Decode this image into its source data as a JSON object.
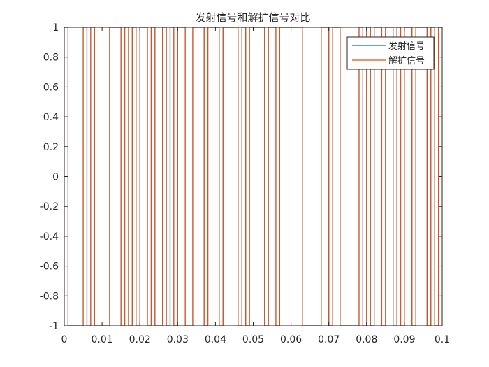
{
  "chart_data": {
    "type": "line",
    "title": "发射信号和解扩信号对比",
    "xlabel": "",
    "ylabel": "",
    "xlim": [
      0,
      0.1
    ],
    "ylim": [
      -1,
      1
    ],
    "x_ticks": [
      0,
      0.01,
      0.02,
      0.03,
      0.04,
      0.05,
      0.06,
      0.07,
      0.08,
      0.09,
      0.1
    ],
    "x_tick_labels": [
      "0",
      "0.01",
      "0.02",
      "0.03",
      "0.04",
      "0.05",
      "0.06",
      "0.07",
      "0.08",
      "0.09",
      "0.1"
    ],
    "y_ticks": [
      1,
      0.8,
      0.6,
      0.4,
      0.2,
      0,
      -0.2,
      -0.4,
      -0.6,
      -0.8,
      -1
    ],
    "y_tick_labels": [
      "1",
      "0.8",
      "0.6",
      "0.4",
      "0.2",
      "0",
      "-0.2",
      "-0.4",
      "-0.6",
      "-0.8",
      "-1"
    ],
    "grid": false,
    "legend_position": "top-right",
    "x": [
      0,
      0.001,
      0.002,
      0.003,
      0.004,
      0.005,
      0.006,
      0.007,
      0.008,
      0.009,
      0.01,
      0.011,
      0.012,
      0.013,
      0.014,
      0.015,
      0.016,
      0.017,
      0.018,
      0.019,
      0.02,
      0.021,
      0.022,
      0.023,
      0.024,
      0.025,
      0.026,
      0.027,
      0.028,
      0.029,
      0.03,
      0.031,
      0.032,
      0.033,
      0.034,
      0.035,
      0.036,
      0.037,
      0.038,
      0.039,
      0.04,
      0.041,
      0.042,
      0.043,
      0.044,
      0.045,
      0.046,
      0.047,
      0.048,
      0.049,
      0.05,
      0.051,
      0.052,
      0.053,
      0.054,
      0.055,
      0.056,
      0.057,
      0.058,
      0.059,
      0.06,
      0.061,
      0.062,
      0.063,
      0.064,
      0.065,
      0.066,
      0.067,
      0.068,
      0.069,
      0.07,
      0.071,
      0.072,
      0.073,
      0.074,
      0.075,
      0.076,
      0.077,
      0.078,
      0.079,
      0.08,
      0.081,
      0.082,
      0.083,
      0.084,
      0.085,
      0.086,
      0.087,
      0.088,
      0.089,
      0.09,
      0.091,
      0.092,
      0.093,
      0.094,
      0.095,
      0.096,
      0.097,
      0.098,
      0.099
    ],
    "series": [
      {
        "name": "发射信号",
        "color": "#0072BD",
        "values": [
          1,
          -1,
          -1,
          -1,
          -1,
          1,
          -1,
          1,
          -1,
          -1,
          -1,
          -1,
          1,
          1,
          1,
          -1,
          1,
          -1,
          1,
          -1,
          1,
          1,
          -1,
          1,
          -1,
          -1,
          1,
          -1,
          1,
          -1,
          1,
          1,
          -1,
          -1,
          1,
          1,
          1,
          -1,
          1,
          1,
          1,
          -1,
          1,
          1,
          1,
          1,
          -1,
          1,
          -1,
          1,
          1,
          1,
          1,
          -1,
          1,
          1,
          -1,
          1,
          1,
          1,
          1,
          1,
          1,
          -1,
          -1,
          -1,
          -1,
          -1,
          1,
          1,
          -1,
          1,
          1,
          -1,
          -1,
          -1,
          -1,
          -1,
          1,
          -1,
          1,
          -1,
          1,
          1,
          -1,
          1,
          1,
          -1,
          1,
          -1,
          1,
          1,
          -1,
          1,
          1,
          1,
          -1,
          1,
          -1,
          1
        ]
      },
      {
        "name": "解扩信号",
        "color": "#D95319",
        "values": [
          1,
          -1,
          -1,
          -1,
          -1,
          1,
          -1,
          1,
          -1,
          -1,
          -1,
          -1,
          1,
          1,
          1,
          -1,
          1,
          -1,
          1,
          -1,
          1,
          1,
          -1,
          1,
          -1,
          -1,
          1,
          -1,
          1,
          -1,
          1,
          1,
          -1,
          -1,
          1,
          1,
          1,
          -1,
          1,
          1,
          1,
          -1,
          1,
          1,
          1,
          1,
          -1,
          1,
          -1,
          1,
          1,
          1,
          1,
          -1,
          1,
          1,
          -1,
          1,
          1,
          1,
          1,
          1,
          1,
          -1,
          -1,
          -1,
          -1,
          -1,
          1,
          1,
          -1,
          1,
          1,
          -1,
          -1,
          -1,
          -1,
          -1,
          1,
          -1,
          1,
          -1,
          1,
          1,
          -1,
          1,
          1,
          -1,
          1,
          -1,
          1,
          1,
          -1,
          1,
          1,
          1,
          -1,
          1,
          -1,
          1
        ]
      }
    ]
  }
}
